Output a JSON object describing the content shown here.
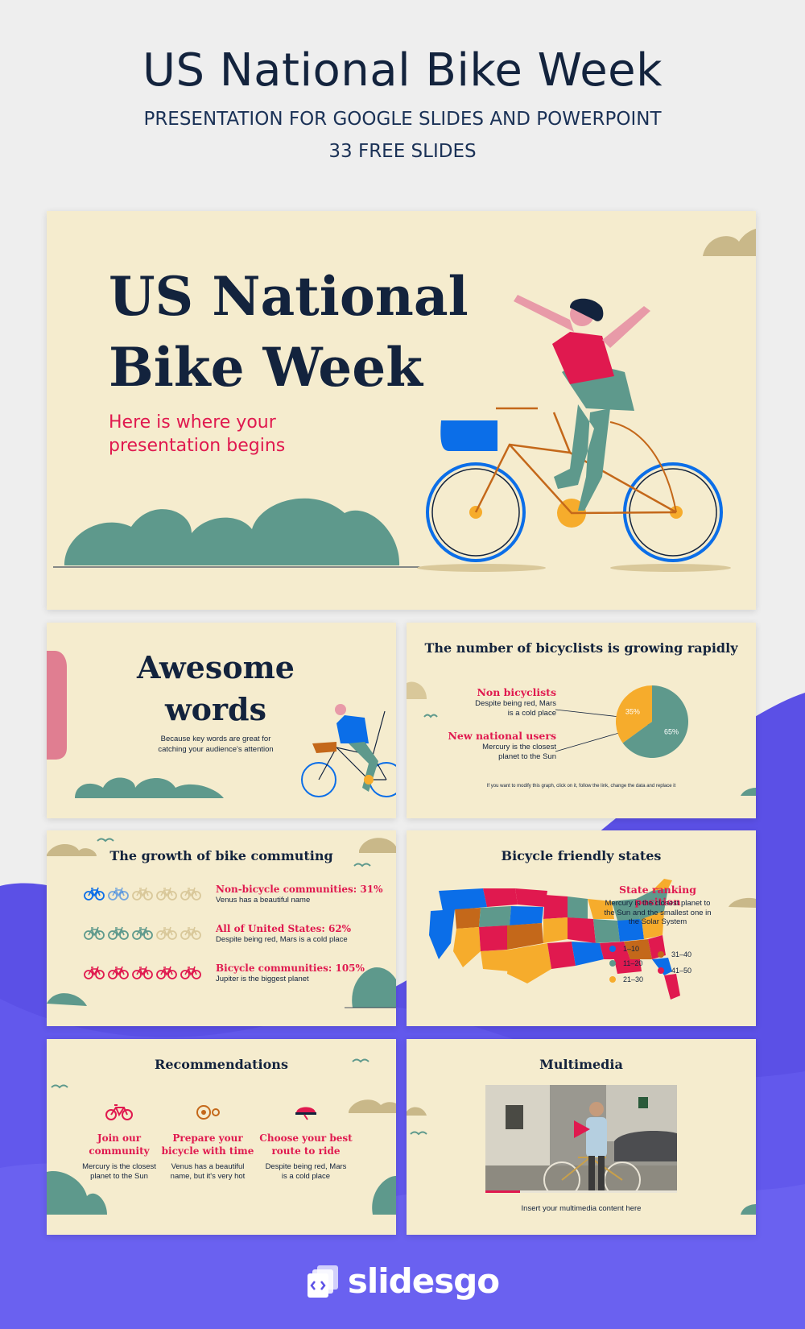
{
  "header": {
    "title": "US National Bike Week",
    "subtitle": "PRESENTATION FOR GOOGLE SLIDES AND POWERPOINT",
    "count": "33 FREE SLIDES"
  },
  "colors": {
    "cream": "#f5ecce",
    "navy": "#13233d",
    "pink": "#e0194f",
    "teal": "#5e998c",
    "blue": "#0b6ee8",
    "orange": "#f6ac2c",
    "brown": "#c4681a",
    "purple": "#5b50e6"
  },
  "slide1": {
    "title_line1": "US National",
    "title_line2": "Bike Week",
    "subtitle_line1": "Here is where your",
    "subtitle_line2": "presentation begins"
  },
  "slide2": {
    "title_line1": "Awesome",
    "title_line2": "words",
    "body_line1": "Because key words are great for",
    "body_line2": "catching your audience's attention"
  },
  "slide3": {
    "title": "The number of bicyclists is growing rapidly",
    "label1": "Non bicyclists",
    "desc1_line1": "Despite being red, Mars",
    "desc1_line2": "is a cold place",
    "label2": "New national users",
    "desc2_line1": "Mercury is the closest",
    "desc2_line2": "planet to the Sun",
    "note": "If you want to modify this graph, click on it, follow the link, change the data and replace it",
    "chart_data": {
      "type": "pie",
      "categories": [
        "Non bicyclists",
        "New national users"
      ],
      "values": [
        35,
        65
      ],
      "data_labels": [
        "35%",
        "65%"
      ]
    }
  },
  "slide4": {
    "title": "The growth of bike commuting",
    "rows": [
      {
        "label": "Non-bicycle communities: 31%",
        "desc": "Venus has a beautiful name",
        "filled": 1.5,
        "color": "#0b6ee8"
      },
      {
        "label": "All of United States: 62%",
        "desc": "Despite being red, Mars is a cold place",
        "filled": 3,
        "color": "#5e998c"
      },
      {
        "label": "Bicycle communities: 105%",
        "desc": "Jupiter is the biggest planet",
        "filled": 5,
        "color": "#e0194f"
      }
    ]
  },
  "slide5": {
    "title": "Bicycle friendly states",
    "label": "State ranking position",
    "desc_line1": "Mercury is the closest planet to",
    "desc_line2": "the Sun and the smallest one in",
    "desc_line3": "the Solar System",
    "legend": [
      {
        "range": "1–10",
        "color": "#0b6ee8"
      },
      {
        "range": "11–20",
        "color": "#5e998c"
      },
      {
        "range": "21–30",
        "color": "#f6ac2c"
      },
      {
        "range": "31–40",
        "color": "#c4681a"
      },
      {
        "range": "41–50",
        "color": "#e0194f"
      }
    ]
  },
  "slide6": {
    "title": "Recommendations",
    "items": [
      {
        "title_line1": "Join our",
        "title_line2": "community",
        "desc_line1": "Mercury is the closest",
        "desc_line2": "planet to the Sun",
        "icon": "bicycle-icon"
      },
      {
        "title_line1": "Prepare your",
        "title_line2": "bicycle with time",
        "desc_line1": "Venus has a beautiful",
        "desc_line2": "name, but it's very hot",
        "icon": "chainring-icon"
      },
      {
        "title_line1": "Choose your best",
        "title_line2": "route to ride",
        "desc_line1": "Despite being red, Mars",
        "desc_line2": "is a cold place",
        "icon": "helmet-icon"
      }
    ]
  },
  "slide7": {
    "title": "Multimedia",
    "caption": "Insert your multimedia content here"
  },
  "footer": {
    "logo": "slidesgo"
  }
}
